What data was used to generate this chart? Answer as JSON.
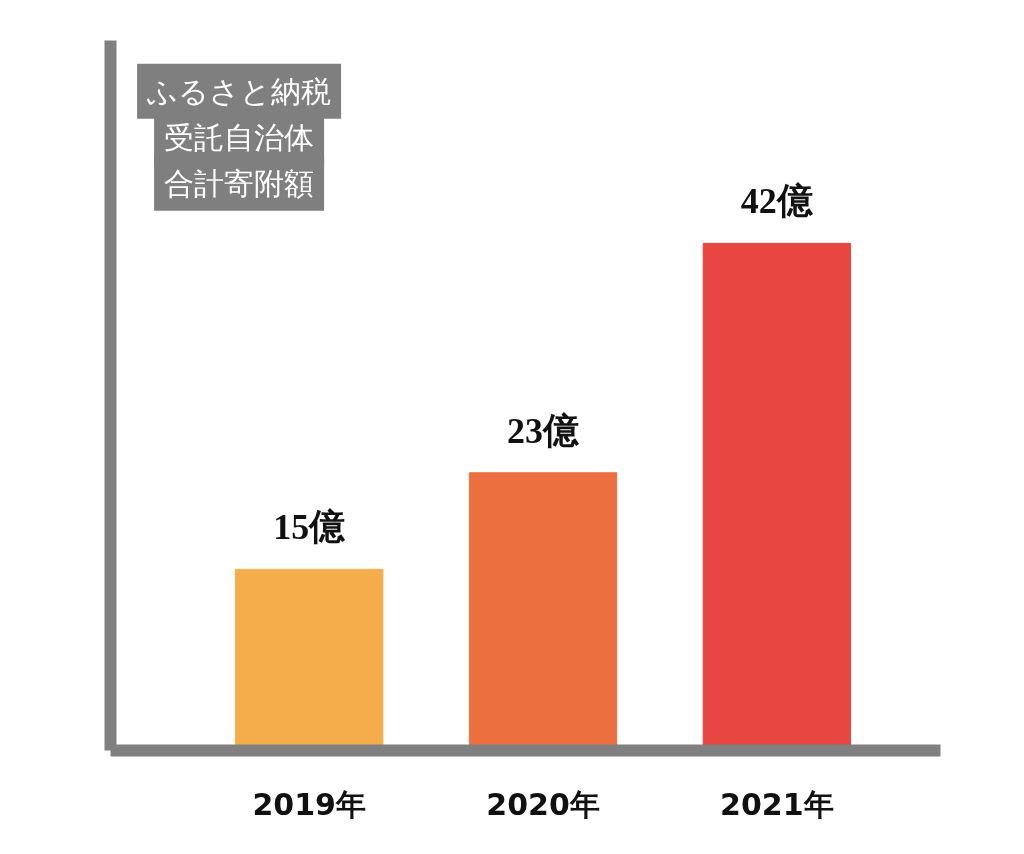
{
  "chart_data": {
    "type": "bar",
    "annotations": [
      "ふるさと納税",
      "受託自治体",
      "合計寄附額"
    ],
    "categories": [
      "2019年",
      "2020年",
      "2021年"
    ],
    "values": [
      15,
      23,
      42
    ],
    "colors": [
      "#f5ac4a",
      "#ec6f3f",
      "#e84640"
    ],
    "value_labels": [
      "15億",
      "23億",
      "42億"
    ],
    "tick_labels": "x",
    "grid": false
  }
}
